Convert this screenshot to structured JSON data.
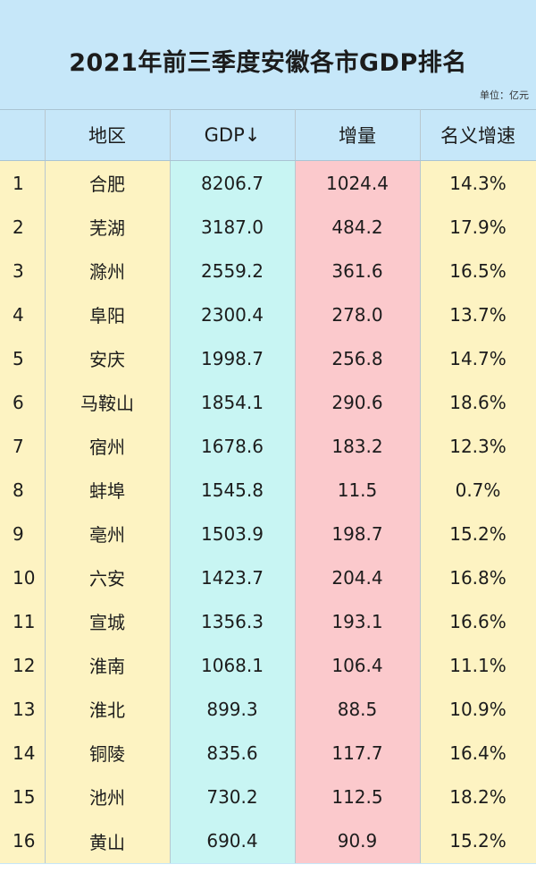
{
  "title": "2021年前三季度安徽各市GDP排名",
  "unit": "单位：亿元",
  "chart_data": {
    "type": "table",
    "title": "2021年前三季度安徽各市GDP排名",
    "unit": "单位：亿元",
    "columns": [
      "",
      "地区",
      "GDP↓",
      "增量",
      "名义增速"
    ],
    "rows": [
      [
        "1",
        "合肥",
        "8206.7",
        "1024.4",
        "14.3%"
      ],
      [
        "2",
        "芜湖",
        "3187.0",
        "484.2",
        "17.9%"
      ],
      [
        "3",
        "滁州",
        "2559.2",
        "361.6",
        "16.5%"
      ],
      [
        "4",
        "阜阳",
        "2300.4",
        "278.0",
        "13.7%"
      ],
      [
        "5",
        "安庆",
        "1998.7",
        "256.8",
        "14.7%"
      ],
      [
        "6",
        "马鞍山",
        "1854.1",
        "290.6",
        "18.6%"
      ],
      [
        "7",
        "宿州",
        "1678.6",
        "183.2",
        "12.3%"
      ],
      [
        "8",
        "蚌埠",
        "1545.8",
        "11.5",
        "0.7%"
      ],
      [
        "9",
        "亳州",
        "1503.9",
        "198.7",
        "15.2%"
      ],
      [
        "10",
        "六安",
        "1423.7",
        "204.4",
        "16.8%"
      ],
      [
        "11",
        "宣城",
        "1356.3",
        "193.1",
        "16.6%"
      ],
      [
        "12",
        "淮南",
        "1068.1",
        "106.4",
        "11.1%"
      ],
      [
        "13",
        "淮北",
        "899.3",
        "88.5",
        "10.9%"
      ],
      [
        "14",
        "铜陵",
        "835.6",
        "117.7",
        "16.4%"
      ],
      [
        "15",
        "池州",
        "730.2",
        "112.5",
        "18.2%"
      ],
      [
        "16",
        "黄山",
        "690.4",
        "90.9",
        "15.2%"
      ]
    ],
    "colors": {
      "header": "#c6e7f9",
      "rank_city": "#fdf3c2",
      "gdp": "#c8f5f3",
      "increment": "#fbc9cc",
      "growth": "#fdf3c2"
    }
  }
}
